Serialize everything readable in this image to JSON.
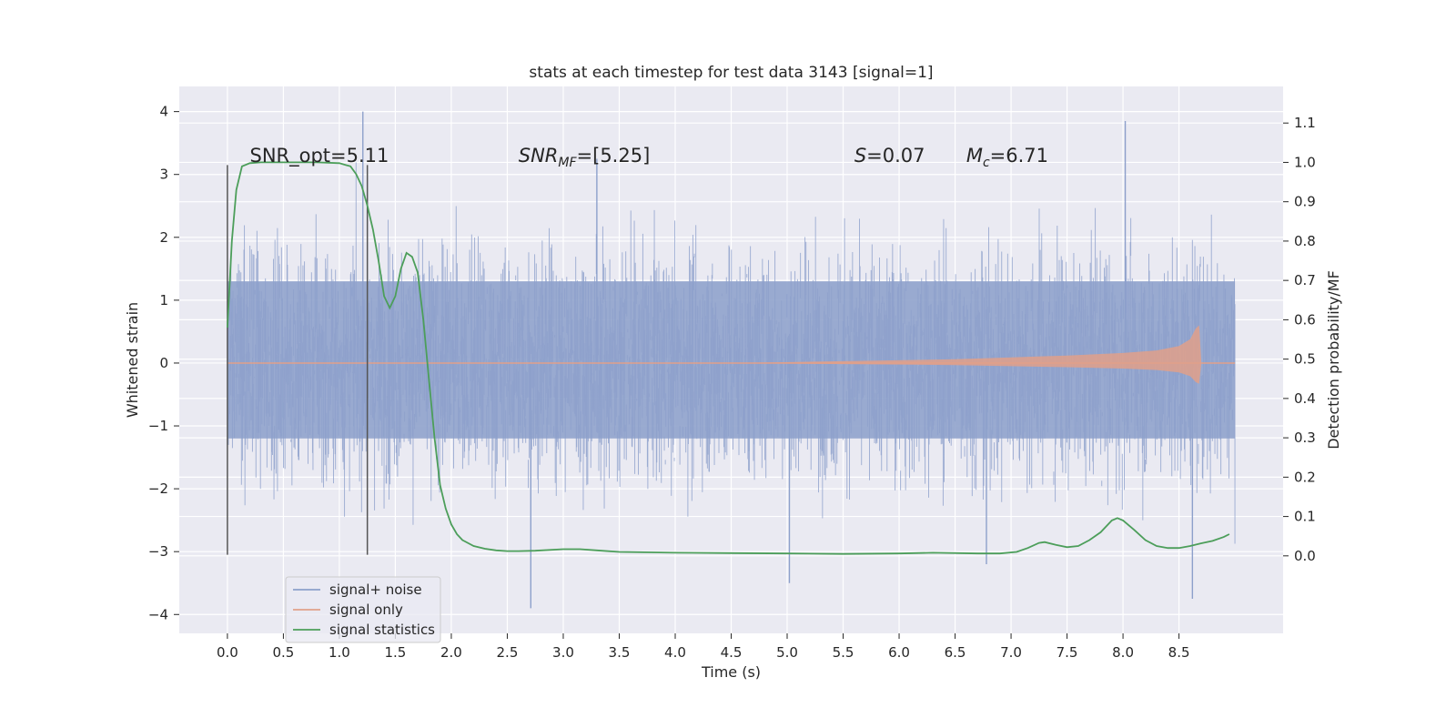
{
  "chart_data": {
    "type": "line",
    "title": "stats at each timestep for test data 3143 [signal=1]",
    "xlabel": "Time (s)",
    "ylabel": "Whitened strain",
    "y2label": "Detection probability/MF",
    "xlim": [
      -0.43,
      9.43
    ],
    "ylim": [
      -4.3,
      4.4
    ],
    "y2lim": [
      -0.197,
      1.193
    ],
    "x_ticks": [
      0.0,
      0.5,
      1.0,
      1.5,
      2.0,
      2.5,
      3.0,
      3.5,
      4.0,
      4.5,
      5.0,
      5.5,
      6.0,
      6.5,
      7.0,
      7.5,
      8.0,
      8.5
    ],
    "x_tick_labels": [
      "0.0",
      "0.5",
      "1.0",
      "1.5",
      "2.0",
      "2.5",
      "3.0",
      "3.5",
      "4.0",
      "4.5",
      "5.0",
      "5.5",
      "6.0",
      "6.5",
      "7.0",
      "7.5",
      "8.0",
      "8.5"
    ],
    "y_ticks": [
      -4,
      -3,
      -2,
      -1,
      0,
      1,
      2,
      3,
      4
    ],
    "y_tick_labels": [
      "−4",
      "−3",
      "−2",
      "−1",
      "0",
      "1",
      "2",
      "3",
      "4"
    ],
    "y2_ticks": [
      0.0,
      0.1,
      0.2,
      0.3,
      0.4,
      0.5,
      0.6,
      0.7,
      0.8,
      0.9,
      1.0,
      1.1
    ],
    "y2_tick_labels": [
      "0.0",
      "0.1",
      "0.2",
      "0.3",
      "0.4",
      "0.5",
      "0.6",
      "0.7",
      "0.8",
      "0.9",
      "1.0",
      "1.1"
    ],
    "grid": true,
    "legend_position": "lower-left",
    "colors": {
      "noise": "#8da0cb",
      "signal": "#e1a08a",
      "stats": "#4c9e5a",
      "vline": "#555555",
      "background": "#eaeaf2"
    },
    "series": [
      {
        "name": "signal+ noise",
        "axis": "left",
        "x_range": [
          0.0,
          9.0
        ],
        "band_envelope": {
          "inner": [
            -1.2,
            1.3
          ],
          "outer": [
            -2.4,
            2.4
          ]
        },
        "visible_peaks": [
          {
            "x": 1.21,
            "y": 4.0
          },
          {
            "x": 8.02,
            "y": 3.85
          },
          {
            "x": 3.3,
            "y": 3.25
          },
          {
            "x": 2.71,
            "y": -3.9
          },
          {
            "x": 8.62,
            "y": -3.75
          },
          {
            "x": 5.02,
            "y": -3.5
          },
          {
            "x": 6.78,
            "y": -3.2
          }
        ]
      },
      {
        "name": "signal only",
        "axis": "left",
        "x": [
          0.0,
          4.5,
          5.5,
          6.5,
          7.0,
          7.5,
          8.0,
          8.3,
          8.5,
          8.6,
          8.65,
          8.68,
          8.7,
          9.0
        ],
        "amplitude": [
          0.0,
          0.0,
          0.03,
          0.06,
          0.09,
          0.12,
          0.16,
          0.2,
          0.27,
          0.38,
          0.55,
          0.6,
          0.0,
          0.0
        ]
      },
      {
        "name": "signal statistics",
        "axis": "right",
        "x": [
          0.0,
          0.04,
          0.08,
          0.13,
          0.2,
          0.3,
          0.5,
          0.8,
          1.0,
          1.1,
          1.15,
          1.2,
          1.25,
          1.3,
          1.35,
          1.4,
          1.45,
          1.5,
          1.55,
          1.6,
          1.65,
          1.7,
          1.75,
          1.8,
          1.85,
          1.9,
          1.95,
          2.0,
          2.05,
          2.1,
          2.2,
          2.3,
          2.4,
          2.5,
          2.6,
          2.75,
          3.0,
          3.15,
          3.3,
          3.5,
          4.0,
          4.5,
          5.0,
          5.5,
          6.0,
          6.3,
          6.7,
          6.9,
          7.05,
          7.15,
          7.25,
          7.3,
          7.4,
          7.5,
          7.6,
          7.7,
          7.8,
          7.9,
          7.95,
          8.0,
          8.1,
          8.2,
          8.3,
          8.4,
          8.5,
          8.6,
          8.7,
          8.8,
          8.9,
          8.95
        ],
        "y": [
          0.58,
          0.8,
          0.93,
          0.99,
          0.998,
          1.0,
          1.0,
          1.0,
          0.998,
          0.99,
          0.97,
          0.94,
          0.89,
          0.83,
          0.75,
          0.66,
          0.63,
          0.66,
          0.73,
          0.77,
          0.76,
          0.72,
          0.6,
          0.45,
          0.3,
          0.18,
          0.12,
          0.08,
          0.055,
          0.04,
          0.025,
          0.018,
          0.014,
          0.012,
          0.012,
          0.013,
          0.017,
          0.017,
          0.014,
          0.01,
          0.008,
          0.007,
          0.006,
          0.005,
          0.006,
          0.008,
          0.006,
          0.006,
          0.01,
          0.02,
          0.033,
          0.035,
          0.028,
          0.022,
          0.025,
          0.04,
          0.06,
          0.09,
          0.096,
          0.09,
          0.066,
          0.04,
          0.025,
          0.02,
          0.02,
          0.025,
          0.032,
          0.038,
          0.048,
          0.055
        ]
      }
    ],
    "vertical_lines": [
      {
        "x": 0.0,
        "y_range": [
          -3.05,
          3.15
        ]
      },
      {
        "x": 1.25,
        "y_range": [
          -3.05,
          3.15
        ]
      }
    ],
    "annotations": [
      {
        "text": "SNR_opt=5.11",
        "x": 0.2,
        "y": 3.2
      },
      {
        "text": "SNR",
        "sub": "MF",
        "suffix": "=[5.25]",
        "italic": true,
        "x": 2.6,
        "y": 3.2
      },
      {
        "text": "S",
        "suffix": "=0.07",
        "italic": true,
        "x": 5.6,
        "y": 3.2
      },
      {
        "text": "M",
        "sub": "c",
        "suffix": "=6.71",
        "italic": true,
        "x": 6.6,
        "y": 3.2
      }
    ]
  }
}
